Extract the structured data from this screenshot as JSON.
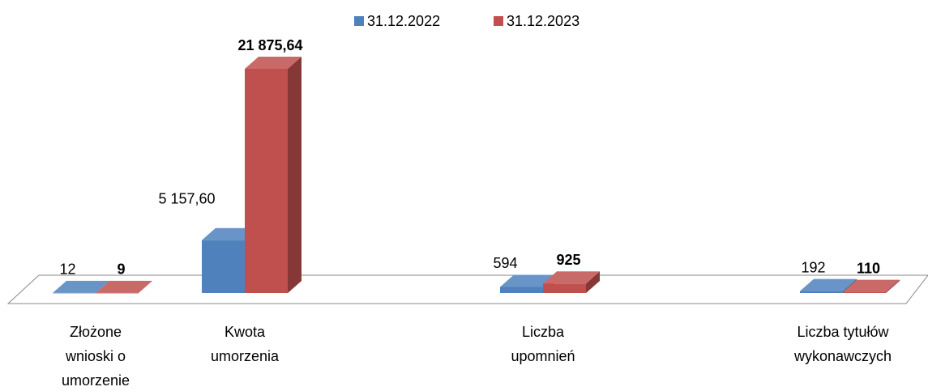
{
  "chart_data": {
    "type": "bar3d",
    "categories": [
      "Złożone wnioski o umorzenie",
      "Kwota umorzenia",
      "Liczba upomnień",
      "Liczba tytułów wykonawczych"
    ],
    "series": [
      {
        "name": "31.12.2022",
        "color": "#4f81bd",
        "values": [
          12,
          5157.6,
          594,
          192
        ],
        "value_labels": [
          "12",
          "5 157,60",
          "594",
          "192"
        ]
      },
      {
        "name": "31.12.2023",
        "color": "#c0504d",
        "values": [
          9,
          21875.64,
          925,
          110
        ],
        "value_labels": [
          "9",
          "21 875,64",
          "925",
          "110"
        ]
      }
    ],
    "legend": "top"
  }
}
